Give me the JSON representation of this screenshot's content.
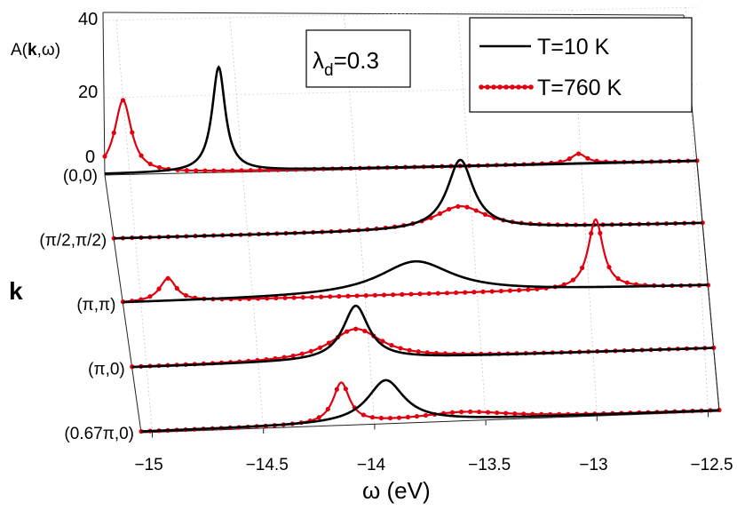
{
  "chart_data": {
    "type": "line",
    "style": "waterfall",
    "y_axis_label": {
      "pre": "A(",
      "bold": "k",
      "post": ",ω)"
    },
    "z_ticks": [
      "40",
      "20",
      "0"
    ],
    "depth_axis_label": "k",
    "xlabel": "ω (eV)",
    "x_range": [
      -15.05,
      -12.45
    ],
    "x_ticks": [
      {
        "value": -15,
        "label": "−15"
      },
      {
        "value": -14.5,
        "label": "−14.5"
      },
      {
        "value": -14,
        "label": "−14"
      },
      {
        "value": -13.5,
        "label": "−13.5"
      },
      {
        "value": -13,
        "label": "−13"
      },
      {
        "value": -12.5,
        "label": "−12.5"
      }
    ],
    "parameter": {
      "symbol": "λ",
      "subscript": "d",
      "value": "=0.3"
    },
    "legend": {
      "position": "top-right",
      "entries": [
        "T=10 K",
        "T=760 K"
      ]
    },
    "series_style": [
      {
        "name": "T=10 K",
        "color": "#000000",
        "marker": "none"
      },
      {
        "name": "T=760 K",
        "color": "#e0000f",
        "marker": "circle"
      }
    ],
    "k_points": [
      {
        "label": "(0,0)",
        "T10K": [
          {
            "center": -14.55,
            "width": 0.035,
            "height": 27
          }
        ],
        "T760K": [
          {
            "center": -14.97,
            "width": 0.045,
            "height": 19
          },
          {
            "center": -12.97,
            "width": 0.04,
            "height": 2.5
          }
        ]
      },
      {
        "label": "(π/2,π/2)",
        "T10K": [
          {
            "center": -13.52,
            "width": 0.07,
            "height": 18
          }
        ],
        "T760K": [
          {
            "center": -13.52,
            "width": 0.14,
            "height": 6
          }
        ]
      },
      {
        "label": "(π,π)",
        "T10K": [
          {
            "center": -13.75,
            "width": 0.2,
            "height": 8.5
          }
        ],
        "T760K": [
          {
            "center": -14.85,
            "width": 0.045,
            "height": 6
          },
          {
            "center": -12.95,
            "width": 0.04,
            "height": 18
          }
        ]
      },
      {
        "label": "(π,0)",
        "T10K": [
          {
            "center": -14.05,
            "width": 0.07,
            "height": 14
          }
        ],
        "T760K": [
          {
            "center": -14.05,
            "width": 0.14,
            "height": 8
          }
        ]
      },
      {
        "label": "(0.67π,0)",
        "T10K": [
          {
            "center": -13.95,
            "width": 0.1,
            "height": 11
          }
        ],
        "T760K": [
          {
            "center": -14.15,
            "width": 0.045,
            "height": 10.5
          },
          {
            "center": -13.6,
            "width": 0.25,
            "height": 2
          }
        ]
      }
    ]
  }
}
